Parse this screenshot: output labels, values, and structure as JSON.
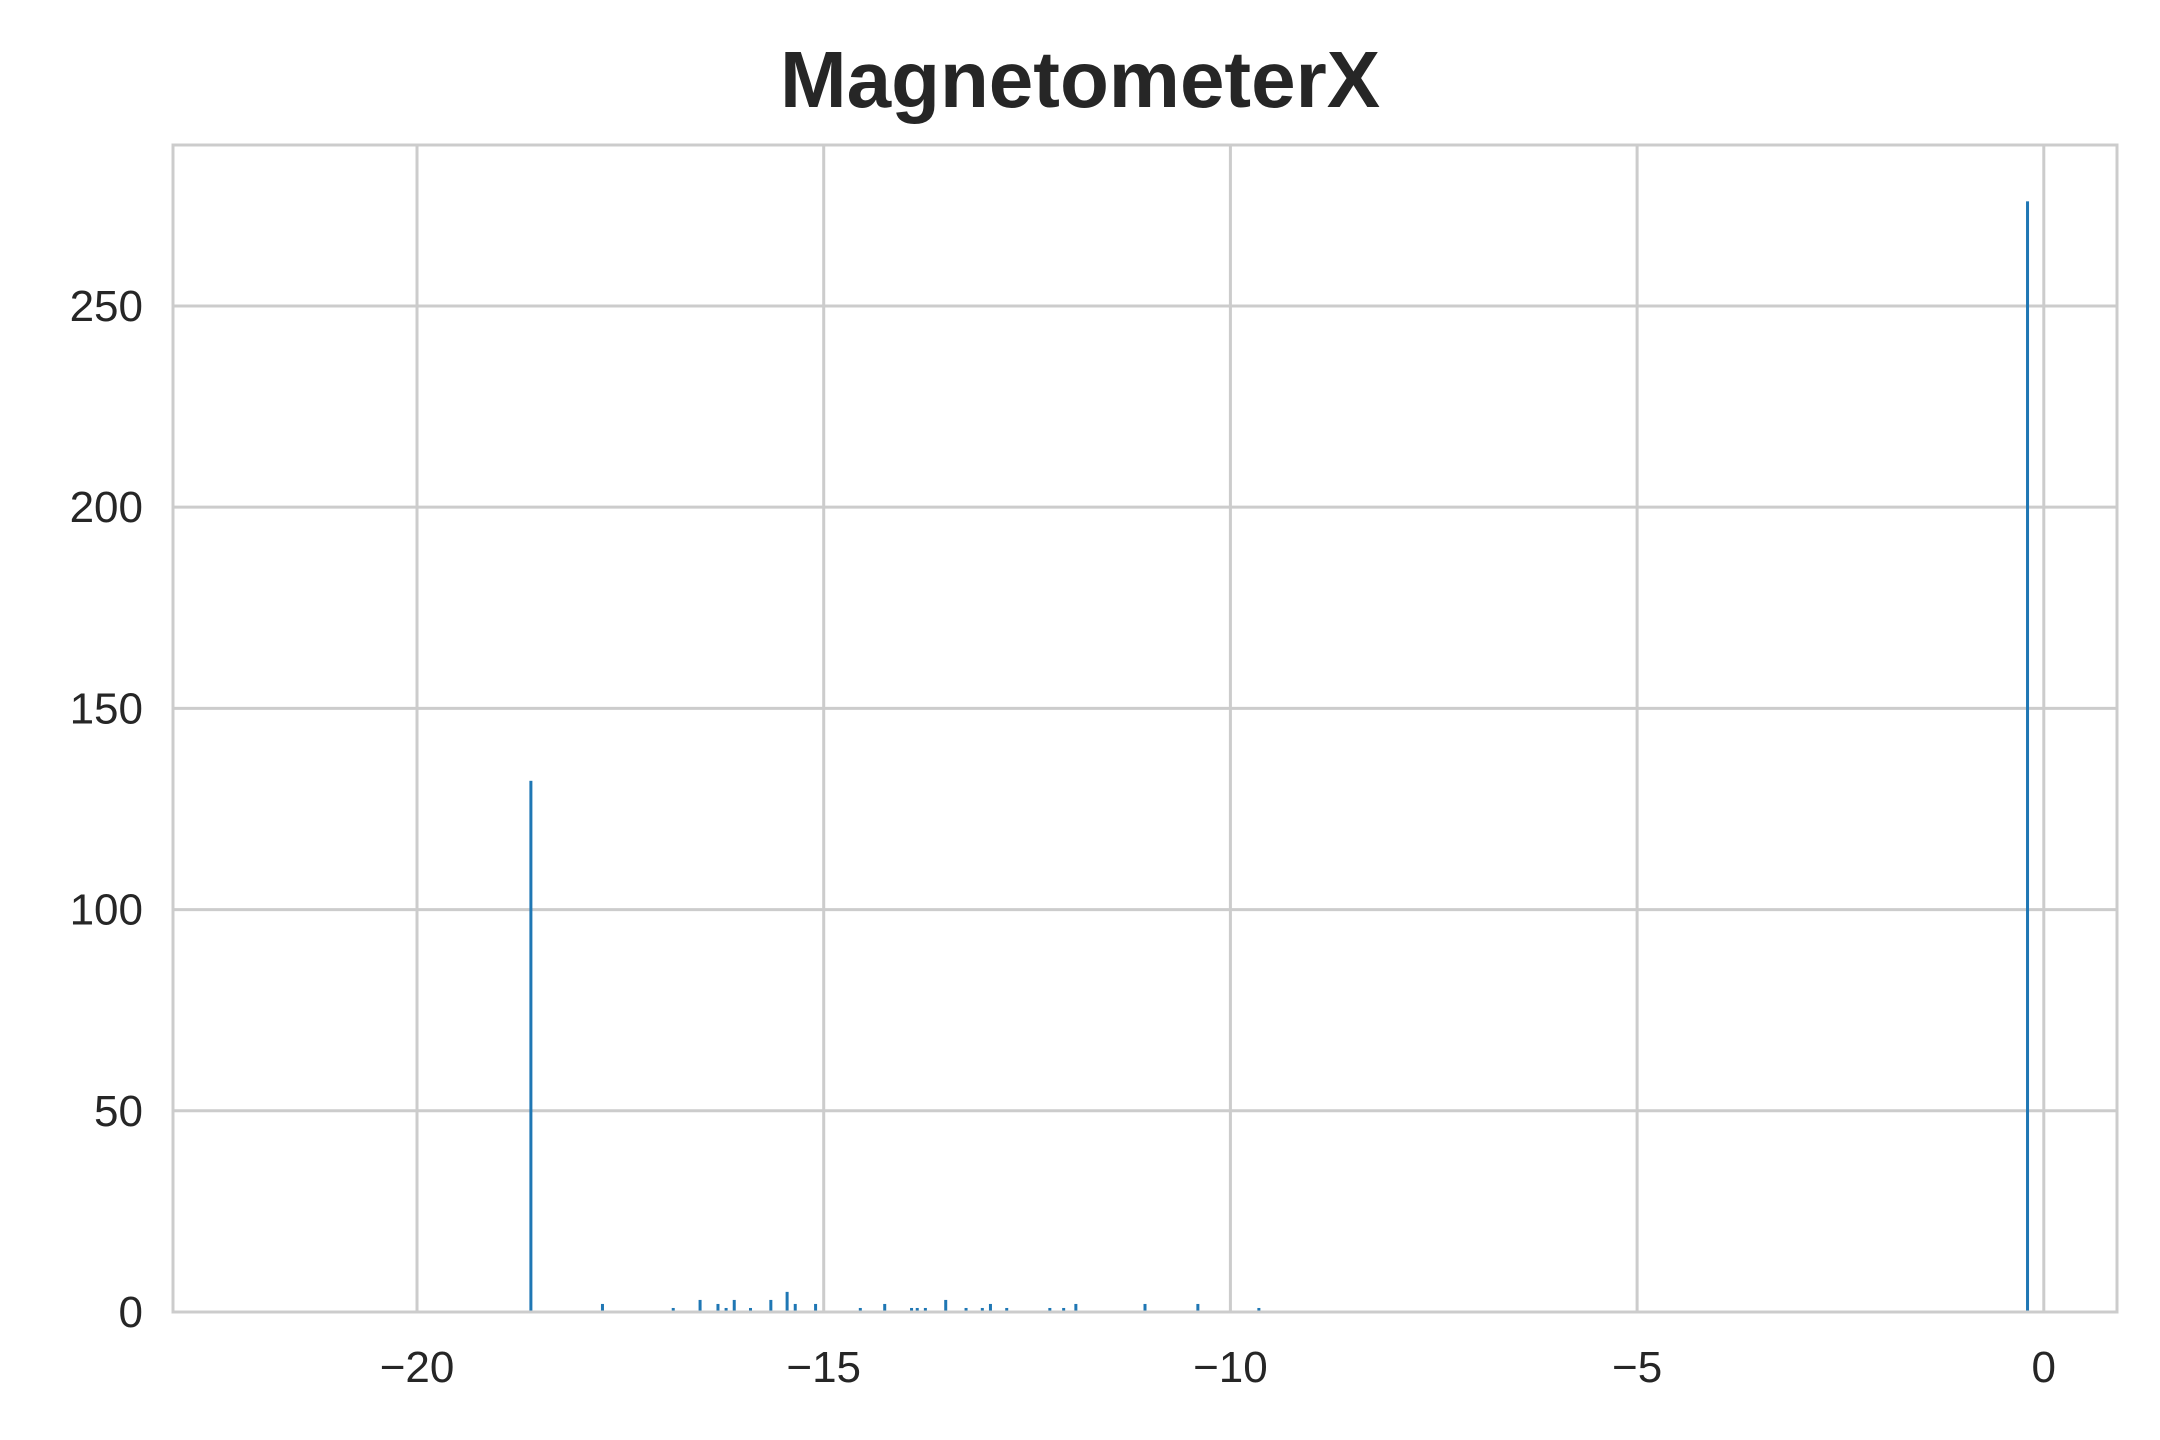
{
  "chart_data": {
    "type": "bar",
    "title": "MagnetometerX",
    "xlabel": "",
    "ylabel": "",
    "xlim": [
      -23.0,
      0.9
    ],
    "ylim": [
      0,
      290
    ],
    "grid": true,
    "x_ticks": [
      -20,
      -15,
      -10,
      -5,
      0
    ],
    "x_tick_labels": [
      "−20",
      "−15",
      "−10",
      "−5",
      "0"
    ],
    "y_ticks": [
      0,
      50,
      100,
      150,
      200,
      250
    ],
    "y_tick_labels": [
      "0",
      "50",
      "100",
      "150",
      "200",
      "250"
    ],
    "bar_color": "#1f77b4",
    "bins": [
      {
        "x": -18.6,
        "count": 132
      },
      {
        "x": -17.72,
        "count": 2
      },
      {
        "x": -16.85,
        "count": 1
      },
      {
        "x": -16.52,
        "count": 3
      },
      {
        "x": -16.3,
        "count": 2
      },
      {
        "x": -16.2,
        "count": 1
      },
      {
        "x": -16.1,
        "count": 3
      },
      {
        "x": -15.9,
        "count": 1
      },
      {
        "x": -15.65,
        "count": 3
      },
      {
        "x": -15.45,
        "count": 5
      },
      {
        "x": -15.35,
        "count": 2
      },
      {
        "x": -15.1,
        "count": 2
      },
      {
        "x": -14.55,
        "count": 1
      },
      {
        "x": -14.25,
        "count": 2
      },
      {
        "x": -13.92,
        "count": 1
      },
      {
        "x": -13.85,
        "count": 1
      },
      {
        "x": -13.75,
        "count": 1
      },
      {
        "x": -13.5,
        "count": 3
      },
      {
        "x": -13.25,
        "count": 1
      },
      {
        "x": -13.05,
        "count": 1
      },
      {
        "x": -12.95,
        "count": 2
      },
      {
        "x": -12.75,
        "count": 1
      },
      {
        "x": -12.22,
        "count": 1
      },
      {
        "x": -12.05,
        "count": 1
      },
      {
        "x": -11.9,
        "count": 2
      },
      {
        "x": -11.05,
        "count": 2
      },
      {
        "x": -10.4,
        "count": 2
      },
      {
        "x": -9.65,
        "count": 1
      },
      {
        "x": -0.2,
        "count": 276
      }
    ]
  }
}
